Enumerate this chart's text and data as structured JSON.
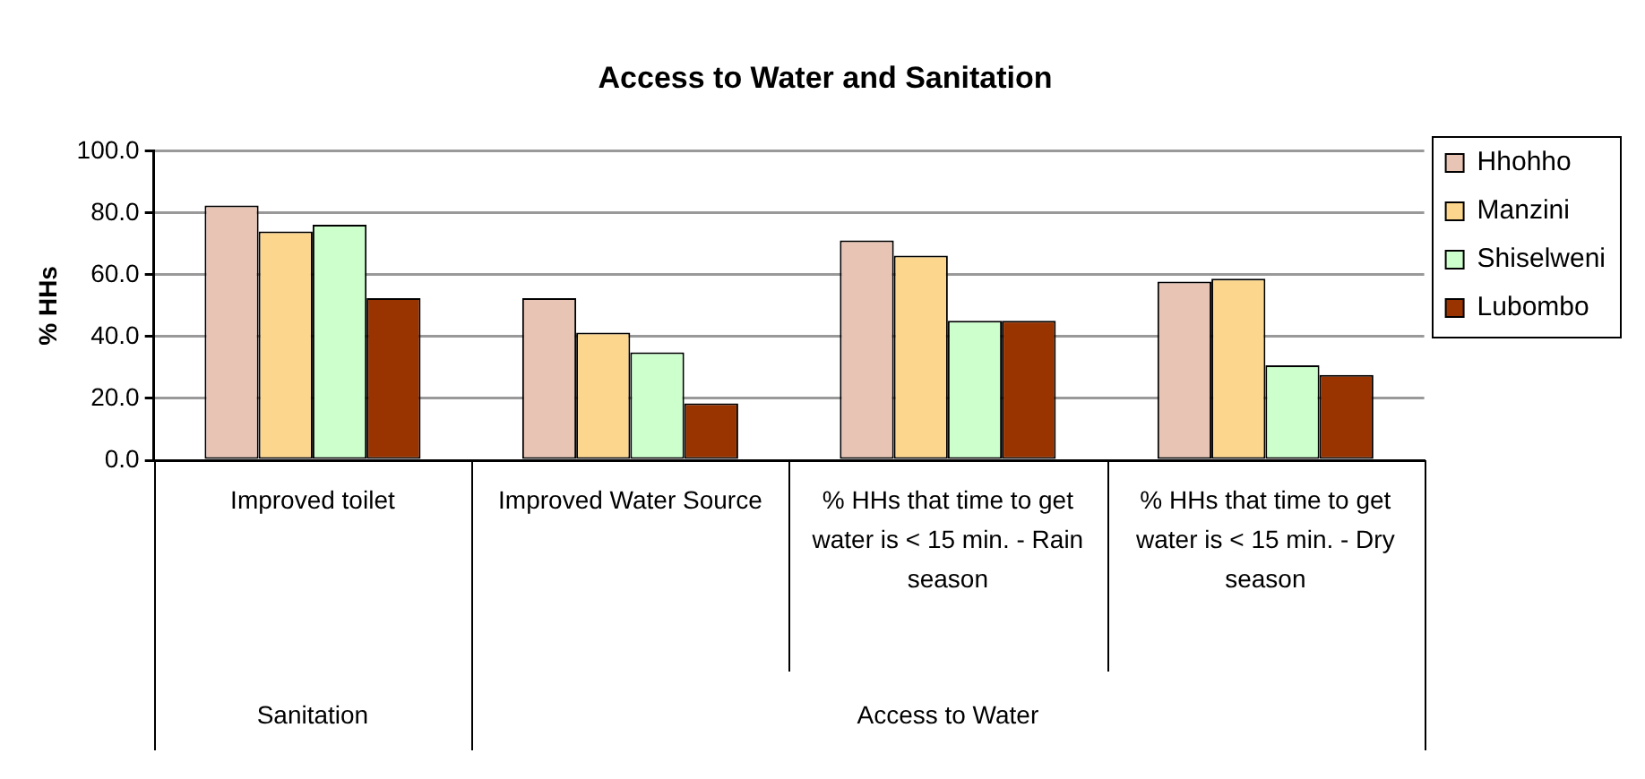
{
  "chart_data": {
    "type": "bar",
    "title": "Access to Water and Sanitation",
    "ylabel": "% HHs",
    "categories": [
      "Improved toilet",
      "Improved Water Source",
      "% HHs that time to get water is < 15 min. - Rain season",
      "% HHs that time to get water is < 15 min. - Dry season"
    ],
    "series": [
      {
        "name": "Hhohho",
        "color": "#e8c4b4",
        "values": [
          82.4,
          52.4,
          71.1,
          57.8
        ]
      },
      {
        "name": "Manzini",
        "color": "#fcd68c",
        "values": [
          74.0,
          41.3,
          66.2,
          58.7
        ]
      },
      {
        "name": "Shiselweni",
        "color": "#ccffcc",
        "values": [
          76.2,
          34.9,
          45.1,
          30.7
        ]
      },
      {
        "name": "Lubombo",
        "color": "#993300",
        "values": [
          52.4,
          18.4,
          45.1,
          27.6
        ]
      }
    ],
    "ylim": [
      0,
      100
    ],
    "yticks": [
      {
        "value": 0,
        "label": "0.0"
      },
      {
        "value": 20,
        "label": "20.0"
      },
      {
        "value": 40,
        "label": "40.0"
      },
      {
        "value": 60,
        "label": "60.0"
      },
      {
        "value": 80,
        "label": "80.0"
      },
      {
        "value": 100,
        "label": "100.0"
      }
    ],
    "grid": "y",
    "legend": "right",
    "annotations": [
      "Sanitation",
      "Access to Water"
    ]
  }
}
